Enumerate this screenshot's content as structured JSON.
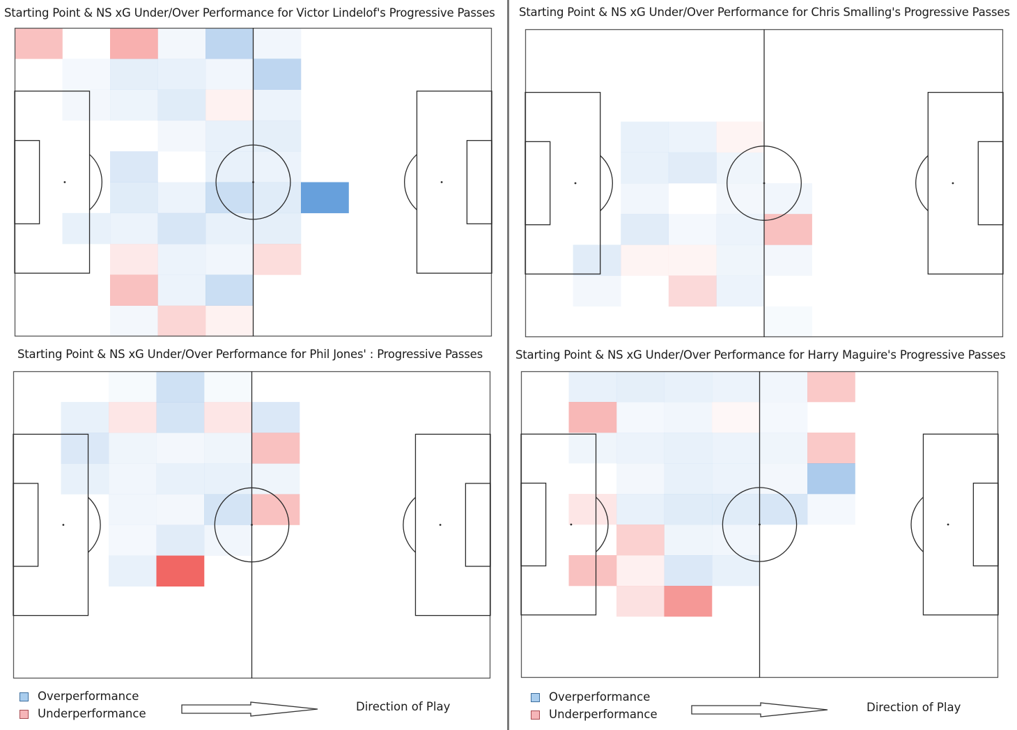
{
  "colors": {
    "over": "#4a8ed5",
    "under": "#ef5350",
    "line": "#2a2a2a",
    "border": "#555555"
  },
  "panels": [
    {
      "title": "Starting Point & NS xG Under/Over Performance  for  Victor Lindelof's Progressive Passes"
    },
    {
      "title": "Starting Point & NS xG Under/Over Performance  for  Chris Smalling's Progressive Passes"
    },
    {
      "title": "Starting Point & NS xG Under/Over Performance  for  Phil Jones' : Progressive Passes"
    },
    {
      "title": "Starting Point & NS xG Under/Over Performance  for Harry Maguire's Progressive Passes"
    }
  ],
  "legends": [
    {
      "over_label": "Overperformance",
      "under_label": "Underperformance",
      "direction_label": "Direction of Play"
    },
    {
      "over_label": "Overperformance",
      "under_label": "Underperformance",
      "direction_label": "Direction of Play"
    }
  ],
  "chart_data": [
    {
      "type": "heatmap",
      "title": "Starting Point & NS xG Under/Over Performance  for  Victor Lindelof's Progressive Passes",
      "grid": {
        "cols": 10,
        "rows": 10
      },
      "cells": [
        [
          0,
          0,
          -0.35
        ],
        [
          2,
          0,
          -0.45
        ],
        [
          3,
          0,
          0.04
        ],
        [
          4,
          0,
          0.35
        ],
        [
          5,
          0,
          0.05
        ],
        [
          1,
          1,
          0.03
        ],
        [
          2,
          1,
          0.12
        ],
        [
          3,
          1,
          0.1
        ],
        [
          4,
          1,
          0.05
        ],
        [
          5,
          1,
          0.35
        ],
        [
          1,
          2,
          0.04
        ],
        [
          2,
          2,
          0.07
        ],
        [
          3,
          2,
          0.15
        ],
        [
          4,
          2,
          -0.05
        ],
        [
          5,
          2,
          0.08
        ],
        [
          3,
          3,
          0.04
        ],
        [
          4,
          3,
          0.1
        ],
        [
          5,
          3,
          0.12
        ],
        [
          2,
          4,
          0.18
        ],
        [
          4,
          4,
          0.1
        ],
        [
          5,
          4,
          0.08
        ],
        [
          2,
          5,
          0.15
        ],
        [
          3,
          5,
          0.08
        ],
        [
          4,
          5,
          0.28
        ],
        [
          5,
          5,
          0.15
        ],
        [
          6,
          5,
          0.85
        ],
        [
          1,
          6,
          0.1
        ],
        [
          2,
          6,
          0.08
        ],
        [
          3,
          6,
          0.2
        ],
        [
          4,
          6,
          0.1
        ],
        [
          5,
          6,
          0.12
        ],
        [
          2,
          7,
          -0.1
        ],
        [
          3,
          7,
          0.08
        ],
        [
          4,
          7,
          0.05
        ],
        [
          5,
          7,
          -0.18
        ],
        [
          2,
          8,
          -0.35
        ],
        [
          3,
          8,
          0.08
        ],
        [
          4,
          8,
          0.28
        ],
        [
          2,
          9,
          0.04
        ],
        [
          3,
          9,
          -0.22
        ],
        [
          4,
          9,
          -0.05
        ]
      ]
    },
    {
      "type": "heatmap",
      "title": "Starting Point & NS xG Under/Over Performance  for  Chris Smalling's Progressive Passes",
      "grid": {
        "cols": 10,
        "rows": 10
      },
      "cells": [
        [
          2,
          3,
          0.1
        ],
        [
          3,
          3,
          0.08
        ],
        [
          4,
          3,
          -0.04
        ],
        [
          2,
          4,
          0.1
        ],
        [
          3,
          4,
          0.14
        ],
        [
          4,
          4,
          0.06
        ],
        [
          2,
          5,
          0.05
        ],
        [
          4,
          5,
          0.04
        ],
        [
          5,
          5,
          0.05
        ],
        [
          2,
          6,
          0.14
        ],
        [
          3,
          6,
          0.03
        ],
        [
          4,
          6,
          0.08
        ],
        [
          5,
          6,
          -0.35
        ],
        [
          1,
          7,
          0.14
        ],
        [
          2,
          7,
          -0.04
        ],
        [
          3,
          7,
          -0.04
        ],
        [
          4,
          7,
          0.06
        ],
        [
          5,
          7,
          0.04
        ],
        [
          1,
          8,
          0.04
        ],
        [
          3,
          8,
          -0.2
        ],
        [
          4,
          8,
          0.08
        ],
        [
          5,
          9,
          0.02
        ]
      ]
    },
    {
      "type": "heatmap",
      "title": "Starting Point & NS xG Under/Over Performance  for  Phil Jones' : Progressive Passes",
      "grid": {
        "cols": 10,
        "rows": 10
      },
      "cells": [
        [
          2,
          0,
          0.02
        ],
        [
          3,
          0,
          0.25
        ],
        [
          4,
          0,
          0.02
        ],
        [
          1,
          1,
          0.1
        ],
        [
          2,
          1,
          -0.12
        ],
        [
          3,
          1,
          0.22
        ],
        [
          4,
          1,
          -0.12
        ],
        [
          5,
          1,
          0.18
        ],
        [
          1,
          2,
          0.18
        ],
        [
          2,
          2,
          0.06
        ],
        [
          3,
          2,
          0.04
        ],
        [
          4,
          2,
          0.06
        ],
        [
          5,
          2,
          -0.35
        ],
        [
          1,
          3,
          0.1
        ],
        [
          2,
          3,
          0.05
        ],
        [
          3,
          3,
          0.1
        ],
        [
          4,
          3,
          0.1
        ],
        [
          5,
          3,
          0.06
        ],
        [
          2,
          4,
          0.05
        ],
        [
          3,
          4,
          0.04
        ],
        [
          4,
          4,
          0.22
        ],
        [
          5,
          4,
          -0.35
        ],
        [
          2,
          5,
          0.03
        ],
        [
          3,
          5,
          0.14
        ],
        [
          4,
          5,
          0.05
        ],
        [
          2,
          6,
          0.1
        ],
        [
          3,
          6,
          -0.9
        ]
      ]
    },
    {
      "type": "heatmap",
      "title": "Starting Point & NS xG Under/Over Performance  for Harry Maguire's Progressive Passes",
      "grid": {
        "cols": 10,
        "rows": 10
      },
      "cells": [
        [
          1,
          0,
          0.1
        ],
        [
          2,
          0,
          0.12
        ],
        [
          3,
          0,
          0.1
        ],
        [
          4,
          0,
          0.08
        ],
        [
          5,
          0,
          0.05
        ],
        [
          6,
          0,
          -0.3
        ],
        [
          1,
          1,
          -0.4
        ],
        [
          2,
          1,
          0.03
        ],
        [
          3,
          1,
          0.05
        ],
        [
          4,
          1,
          -0.02
        ],
        [
          5,
          1,
          0.03
        ],
        [
          1,
          2,
          0.06
        ],
        [
          2,
          2,
          0.08
        ],
        [
          3,
          2,
          0.1
        ],
        [
          4,
          2,
          0.08
        ],
        [
          5,
          2,
          0.06
        ],
        [
          6,
          2,
          -0.3
        ],
        [
          2,
          3,
          0.04
        ],
        [
          3,
          3,
          0.1
        ],
        [
          4,
          3,
          0.08
        ],
        [
          5,
          3,
          0.04
        ],
        [
          6,
          3,
          0.45
        ],
        [
          1,
          4,
          -0.12
        ],
        [
          2,
          4,
          0.1
        ],
        [
          3,
          4,
          0.15
        ],
        [
          4,
          4,
          0.15
        ],
        [
          5,
          4,
          0.2
        ],
        [
          6,
          4,
          0.03
        ],
        [
          2,
          5,
          -0.25
        ],
        [
          3,
          5,
          0.06
        ],
        [
          4,
          5,
          0.05
        ],
        [
          1,
          6,
          -0.35
        ],
        [
          2,
          6,
          -0.06
        ],
        [
          3,
          6,
          0.18
        ],
        [
          4,
          6,
          0.1
        ],
        [
          2,
          7,
          -0.15
        ],
        [
          3,
          7,
          -0.6
        ]
      ]
    }
  ]
}
